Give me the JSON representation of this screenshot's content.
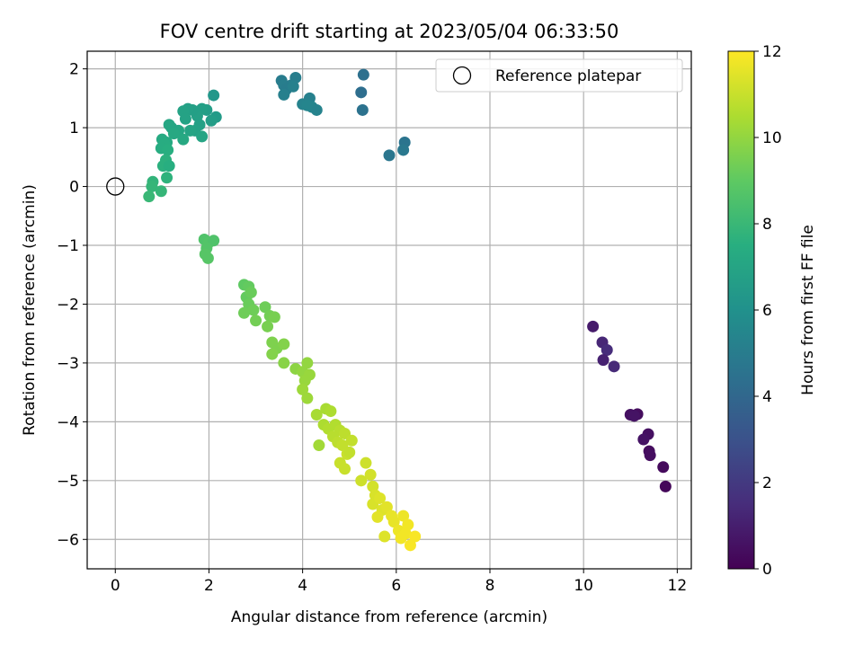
{
  "chart_data": {
    "type": "scatter",
    "title": "FOV centre drift starting at 2023/05/04 06:33:50",
    "xlabel": "Angular distance from reference (arcmin)",
    "ylabel": "Rotation from reference (arcmin)",
    "xlim": [
      -0.6,
      12.3
    ],
    "ylim": [
      -6.5,
      2.3
    ],
    "xticks": [
      0,
      2,
      4,
      6,
      8,
      10,
      12
    ],
    "yticks": [
      -6,
      -5,
      -4,
      -3,
      -2,
      -1,
      0,
      1,
      2
    ],
    "grid": true,
    "legend": {
      "position": "top-right",
      "entries": [
        "Reference platepar"
      ]
    },
    "colorbar": {
      "label": "Hours from first FF file",
      "min": 0,
      "max": 12,
      "ticks": [
        0,
        2,
        4,
        6,
        8,
        10,
        12
      ],
      "colormap": "viridis"
    },
    "reference_point": {
      "x": 0,
      "y": 0,
      "label": "Reference platepar"
    },
    "points": [
      [
        10.2,
        -2.38,
        0.9
      ],
      [
        10.4,
        -2.65,
        1.3
      ],
      [
        10.5,
        -2.78,
        1.5
      ],
      [
        10.42,
        -2.95,
        1.1
      ],
      [
        10.65,
        -3.06,
        1.4
      ],
      [
        11.0,
        -3.88,
        0.5
      ],
      [
        11.15,
        -3.87,
        0.4
      ],
      [
        11.08,
        -3.9,
        0.6
      ],
      [
        11.38,
        -4.21,
        0.5
      ],
      [
        11.28,
        -4.3,
        0.6
      ],
      [
        11.4,
        -4.5,
        0.4
      ],
      [
        11.42,
        -4.57,
        0.45
      ],
      [
        11.7,
        -4.77,
        0.3
      ],
      [
        11.75,
        -5.1,
        0.2
      ],
      [
        5.3,
        1.9,
        4.4
      ],
      [
        5.25,
        1.6,
        4.3
      ],
      [
        5.28,
        1.3,
        4.5
      ],
      [
        5.85,
        0.53,
        4.7
      ],
      [
        6.18,
        0.75,
        4.6
      ],
      [
        6.15,
        0.62,
        4.8
      ],
      [
        3.55,
        1.8,
        5.0
      ],
      [
        3.6,
        1.72,
        5.1
      ],
      [
        3.65,
        1.65,
        5.0
      ],
      [
        3.6,
        1.56,
        5.2
      ],
      [
        3.75,
        1.72,
        5.0
      ],
      [
        3.85,
        1.85,
        5.1
      ],
      [
        3.8,
        1.7,
        5.2
      ],
      [
        4.0,
        1.4,
        5.3
      ],
      [
        4.15,
        1.5,
        5.2
      ],
      [
        4.2,
        1.35,
        5.4
      ],
      [
        4.3,
        1.3,
        5.3
      ],
      [
        4.1,
        1.38,
        5.4
      ],
      [
        2.1,
        1.55,
        6.3
      ],
      [
        2.15,
        1.18,
        6.5
      ],
      [
        2.05,
        1.12,
        6.6
      ],
      [
        1.95,
        1.3,
        6.6
      ],
      [
        1.85,
        1.32,
        6.7
      ],
      [
        1.75,
        1.2,
        6.8
      ],
      [
        1.65,
        1.3,
        6.7
      ],
      [
        1.55,
        1.32,
        6.8
      ],
      [
        1.45,
        1.28,
        6.9
      ],
      [
        1.5,
        1.15,
        6.9
      ],
      [
        1.8,
        1.05,
        6.8
      ],
      [
        1.7,
        0.95,
        6.9
      ],
      [
        1.85,
        0.85,
        7.0
      ],
      [
        1.6,
        0.95,
        7.0
      ],
      [
        1.35,
        0.95,
        7.1
      ],
      [
        1.2,
        1.0,
        7.0
      ],
      [
        1.15,
        1.05,
        7.1
      ],
      [
        1.25,
        0.9,
        7.2
      ],
      [
        1.45,
        0.8,
        7.2
      ],
      [
        1.0,
        0.8,
        7.3
      ],
      [
        1.1,
        0.75,
        7.3
      ],
      [
        1.05,
        0.72,
        7.4
      ],
      [
        0.98,
        0.65,
        7.4
      ],
      [
        1.12,
        0.62,
        7.5
      ],
      [
        1.08,
        0.45,
        7.6
      ],
      [
        1.02,
        0.35,
        7.6
      ],
      [
        1.15,
        0.35,
        7.5
      ],
      [
        1.1,
        0.15,
        7.7
      ],
      [
        0.8,
        0.08,
        7.8
      ],
      [
        0.78,
        0.0,
        7.9
      ],
      [
        0.72,
        -0.17,
        8.0
      ],
      [
        0.98,
        -0.08,
        7.9
      ],
      [
        1.9,
        -0.9,
        8.6
      ],
      [
        2.0,
        -0.95,
        8.7
      ],
      [
        2.1,
        -0.92,
        8.6
      ],
      [
        1.95,
        -1.05,
        8.7
      ],
      [
        1.92,
        -1.15,
        8.8
      ],
      [
        1.98,
        -1.22,
        8.8
      ],
      [
        2.75,
        -1.67,
        9.0
      ],
      [
        2.85,
        -1.7,
        9.1
      ],
      [
        2.8,
        -1.88,
        9.1
      ],
      [
        2.9,
        -1.8,
        9.2
      ],
      [
        2.85,
        -2.0,
        9.2
      ],
      [
        2.75,
        -2.15,
        9.3
      ],
      [
        2.95,
        -2.1,
        9.3
      ],
      [
        3.0,
        -2.28,
        9.4
      ],
      [
        3.2,
        -2.05,
        9.3
      ],
      [
        3.3,
        -2.2,
        9.4
      ],
      [
        3.25,
        -2.38,
        9.5
      ],
      [
        3.4,
        -2.22,
        9.5
      ],
      [
        3.35,
        -2.65,
        9.6
      ],
      [
        3.45,
        -2.75,
        9.6
      ],
      [
        3.6,
        -2.68,
        9.7
      ],
      [
        3.35,
        -2.85,
        9.7
      ],
      [
        3.6,
        -3.0,
        9.8
      ],
      [
        3.85,
        -3.1,
        9.9
      ],
      [
        4.1,
        -3.0,
        10.0
      ],
      [
        4.0,
        -3.15,
        10.0
      ],
      [
        4.15,
        -3.2,
        10.1
      ],
      [
        4.05,
        -3.3,
        10.1
      ],
      [
        4.0,
        -3.45,
        10.2
      ],
      [
        4.1,
        -3.6,
        10.2
      ],
      [
        4.3,
        -3.88,
        10.4
      ],
      [
        4.5,
        -3.78,
        10.4
      ],
      [
        4.6,
        -3.82,
        10.5
      ],
      [
        4.45,
        -4.05,
        10.5
      ],
      [
        4.55,
        -4.12,
        10.6
      ],
      [
        4.7,
        -4.05,
        10.6
      ],
      [
        4.8,
        -4.15,
        10.7
      ],
      [
        4.65,
        -4.25,
        10.7
      ],
      [
        4.75,
        -4.35,
        10.8
      ],
      [
        4.9,
        -4.2,
        10.8
      ],
      [
        5.05,
        -4.32,
        10.9
      ],
      [
        4.85,
        -4.4,
        10.9
      ],
      [
        4.95,
        -4.55,
        11.0
      ],
      [
        4.8,
        -4.7,
        11.0
      ],
      [
        4.9,
        -4.8,
        11.0
      ],
      [
        4.35,
        -4.4,
        10.3
      ],
      [
        5.0,
        -4.52,
        10.9
      ],
      [
        5.25,
        -5.0,
        11.1
      ],
      [
        5.35,
        -4.7,
        11.1
      ],
      [
        5.45,
        -4.9,
        11.2
      ],
      [
        5.5,
        -5.1,
        11.2
      ],
      [
        5.55,
        -5.25,
        11.3
      ],
      [
        5.5,
        -5.4,
        11.3
      ],
      [
        5.65,
        -5.3,
        11.4
      ],
      [
        5.7,
        -5.5,
        11.4
      ],
      [
        5.6,
        -5.62,
        11.5
      ],
      [
        5.8,
        -5.45,
        11.5
      ],
      [
        5.9,
        -5.6,
        11.6
      ],
      [
        5.95,
        -5.7,
        11.6
      ],
      [
        5.75,
        -5.95,
        11.4
      ],
      [
        6.05,
        -5.85,
        11.7
      ],
      [
        6.15,
        -5.6,
        11.7
      ],
      [
        6.2,
        -5.9,
        11.8
      ],
      [
        6.25,
        -5.75,
        11.8
      ],
      [
        6.3,
        -6.1,
        11.9
      ],
      [
        6.4,
        -5.95,
        11.9
      ],
      [
        6.1,
        -5.98,
        11.8
      ]
    ]
  }
}
